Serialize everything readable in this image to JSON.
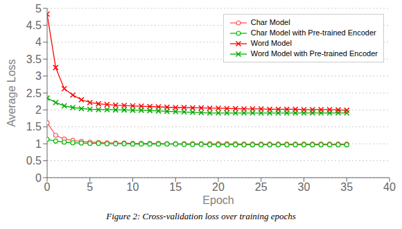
{
  "chart_data": {
    "type": "line",
    "xlabel": "Epoch",
    "ylabel": "Average Loss",
    "caption": "Figure 2: Cross-validation loss over training epochs",
    "x": [
      0,
      1,
      2,
      3,
      4,
      5,
      6,
      7,
      8,
      9,
      10,
      11,
      12,
      13,
      14,
      15,
      16,
      17,
      18,
      19,
      20,
      21,
      22,
      23,
      24,
      25,
      26,
      27,
      28,
      29,
      30,
      31,
      32,
      33,
      34,
      35
    ],
    "xlim": [
      0,
      40
    ],
    "xticks": [
      0,
      5,
      10,
      15,
      20,
      25,
      30,
      35,
      40
    ],
    "ylim": [
      0,
      5
    ],
    "yticks": [
      0,
      0.5,
      1,
      1.5,
      2,
      2.5,
      3,
      3.5,
      4,
      4.5,
      5
    ],
    "grid": true,
    "legend": "upper right",
    "series": [
      {
        "name": "Char Model",
        "color": "#ff5555",
        "marker": "circle",
        "values": [
          1.62,
          1.25,
          1.14,
          1.1,
          1.07,
          1.05,
          1.04,
          1.03,
          1.02,
          1.02,
          1.01,
          1.01,
          1.01,
          1.01,
          1.0,
          1.0,
          1.0,
          1.0,
          1.0,
          1.0,
          1.0,
          1.0,
          1.0,
          0.99,
          0.99,
          0.99,
          0.99,
          0.99,
          0.99,
          0.99,
          0.99,
          0.99,
          0.99,
          0.99,
          0.99,
          0.99
        ]
      },
      {
        "name": "Char Model with Pre-trained Encoder",
        "color": "#00bb00",
        "marker": "circle",
        "values": [
          1.13,
          1.08,
          1.05,
          1.03,
          1.02,
          1.01,
          1.01,
          1.0,
          1.0,
          1.0,
          0.99,
          0.99,
          0.99,
          0.99,
          0.99,
          0.99,
          0.98,
          0.98,
          0.98,
          0.97,
          0.97,
          0.97,
          0.97,
          0.97,
          0.97,
          0.97,
          0.97,
          0.97,
          0.97,
          0.97,
          0.97,
          0.97,
          0.97,
          0.97,
          0.97,
          0.97
        ]
      },
      {
        "name": "Word Model",
        "color": "#ff0000",
        "marker": "x",
        "values": [
          4.83,
          3.25,
          2.63,
          2.44,
          2.3,
          2.22,
          2.18,
          2.16,
          2.14,
          2.13,
          2.12,
          2.11,
          2.1,
          2.09,
          2.08,
          2.07,
          2.07,
          2.06,
          2.06,
          2.05,
          2.05,
          2.04,
          2.04,
          2.03,
          2.03,
          2.03,
          2.02,
          2.02,
          2.02,
          2.02,
          2.01,
          2.01,
          2.01,
          2.01,
          2.0,
          1.99
        ]
      },
      {
        "name": "Word Model with Pre-trained Encoder",
        "color": "#00aa00",
        "marker": "x",
        "values": [
          2.35,
          2.22,
          2.12,
          2.07,
          2.04,
          2.02,
          2.01,
          2.01,
          2.0,
          2.0,
          1.99,
          1.99,
          1.98,
          1.97,
          1.96,
          1.95,
          1.94,
          1.93,
          1.92,
          1.91,
          1.91,
          1.91,
          1.91,
          1.91,
          1.91,
          1.91,
          1.91,
          1.91,
          1.91,
          1.91,
          1.91,
          1.91,
          1.91,
          1.91,
          1.91,
          1.91
        ]
      }
    ]
  }
}
